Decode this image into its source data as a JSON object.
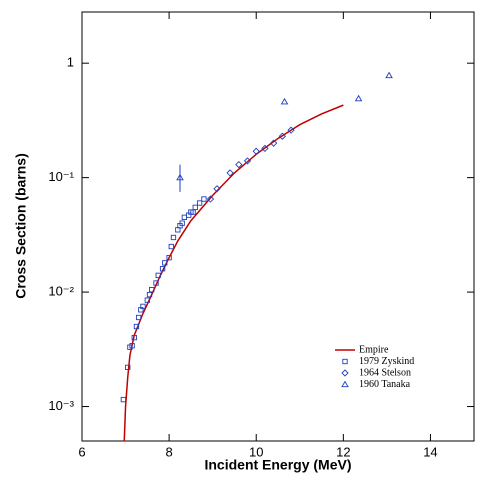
{
  "chart_data": {
    "type": "scatter",
    "xlabel": "Incident Energy (MeV)",
    "ylabel": "Cross Section (barns)",
    "xlim": [
      6,
      15
    ],
    "xticks": [
      6,
      8,
      10,
      12,
      14
    ],
    "ylim": [
      0.0005,
      2.8
    ],
    "yscale": "log",
    "yticks": [
      {
        "value": 0.001,
        "label": "10⁻³"
      },
      {
        "value": 0.01,
        "label": "10⁻²"
      },
      {
        "value": 0.1,
        "label": "10⁻¹"
      },
      1
    ],
    "legend": "lower right",
    "series": [
      {
        "name": "Empire",
        "kind": "line",
        "color": "#c00000",
        "x": [
          6.97,
          7.0,
          7.05,
          7.1,
          7.2,
          7.4,
          7.6,
          7.8,
          8.0,
          8.2,
          8.5,
          9.0,
          9.5,
          10.0,
          10.5,
          11.0,
          11.5,
          12.0
        ],
        "values": [
          0.0005,
          0.001,
          0.0018,
          0.0028,
          0.0042,
          0.0065,
          0.0095,
          0.014,
          0.02,
          0.028,
          0.042,
          0.07,
          0.11,
          0.16,
          0.22,
          0.29,
          0.36,
          0.43
        ]
      },
      {
        "name": "1979 Zyskind",
        "kind": "square",
        "color": "#1f3fbf",
        "x": [
          6.95,
          7.05,
          7.1,
          7.15,
          7.2,
          7.25,
          7.3,
          7.35,
          7.4,
          7.5,
          7.55,
          7.6,
          7.7,
          7.75,
          7.85,
          7.9,
          8.0,
          8.05,
          8.1,
          8.2,
          8.25,
          8.3,
          8.35,
          8.45,
          8.5,
          8.55,
          8.6,
          8.7,
          8.8
        ],
        "values": [
          0.00115,
          0.0022,
          0.0033,
          0.0034,
          0.004,
          0.005,
          0.006,
          0.007,
          0.0075,
          0.0085,
          0.0095,
          0.0105,
          0.012,
          0.014,
          0.016,
          0.018,
          0.02,
          0.025,
          0.03,
          0.035,
          0.038,
          0.04,
          0.045,
          0.047,
          0.05,
          0.05,
          0.055,
          0.06,
          0.065
        ]
      },
      {
        "name": "1964 Stelson",
        "kind": "diamond",
        "color": "#1f3fbf",
        "x": [
          8.95,
          9.1,
          9.4,
          9.6,
          9.8,
          10.0,
          10.2,
          10.4,
          10.6,
          10.8
        ],
        "values": [
          0.065,
          0.08,
          0.11,
          0.13,
          0.14,
          0.17,
          0.18,
          0.2,
          0.23,
          0.26
        ]
      },
      {
        "name": "1960 Tanaka",
        "kind": "triangle",
        "color": "#1f3fbf",
        "x": [
          8.25,
          10.65,
          12.35,
          13.05
        ],
        "values": [
          0.1,
          0.46,
          0.49,
          0.78
        ],
        "yerr": [
          [
            0.025,
            0.03
          ],
          null,
          null,
          null
        ]
      }
    ]
  }
}
